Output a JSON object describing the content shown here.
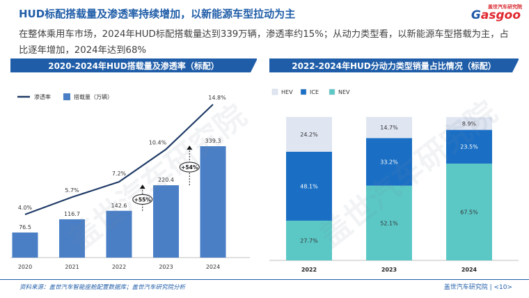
{
  "header": {
    "title": "HUD标配搭载量及渗透率持续增加，以新能源车型拉动为主",
    "subtitle": "在整体乘用车市场，2024年HUD标配搭载量达到339万辆，渗透率约15%；从动力类型看，以新能源车型搭载为主，占比逐年增加，2024年达到68%"
  },
  "logo": {
    "top_text": "盖世汽车研究院",
    "word": "asgoo",
    "word_g": "G"
  },
  "watermark_text": "盖世汽车研究院",
  "footer": {
    "source": "资料来源：盖世汽车智能座舱配置数据库；盖世汽车研究院分析",
    "page": "盖世汽车研究院 | <10>"
  },
  "colors": {
    "brand_blue": "#1f5da8",
    "bar_blue": "#4a7fc6",
    "line_navy": "#1f3a66",
    "hev": "#dfe5f1",
    "ice": "#1a6fc4",
    "nev": "#5bc8c6"
  },
  "chart_data": [
    {
      "type": "bar",
      "title": "2020-2024年HUD搭载量及渗透率（标配）",
      "categories": [
        "2020",
        "2021",
        "2022",
        "2023",
        "2024"
      ],
      "series": [
        {
          "name": "搭载量（万辆）",
          "kind": "bar",
          "values": [
            76.5,
            116.7,
            142.6,
            220.4,
            339.3
          ],
          "labels": [
            "76.5",
            "116.7",
            "142.6",
            "220.4",
            "339.3"
          ]
        },
        {
          "name": "渗透率",
          "kind": "line",
          "values": [
            4.0,
            5.7,
            7.2,
            10.4,
            14.8
          ],
          "labels": [
            "4.0%",
            "5.7%",
            "7.2%",
            "10.4%",
            "14.8%"
          ]
        }
      ],
      "annotations": [
        {
          "text": "+55%",
          "from": "2022",
          "to": "2023"
        },
        {
          "text": "+54%",
          "from": "2023",
          "to": "2024"
        }
      ],
      "legend": "top-left",
      "grid": false
    },
    {
      "type": "bar",
      "stacked": true,
      "title": "2022-2024年HUD分动力类型销量占比情况（标配）",
      "categories": [
        "2022",
        "2023",
        "2024"
      ],
      "series": [
        {
          "name": "NEV",
          "values": [
            27.7,
            52.1,
            67.5
          ],
          "labels": [
            "27.7%",
            "52.1%",
            "67.5%"
          ]
        },
        {
          "name": "ICE",
          "values": [
            48.1,
            33.2,
            23.5
          ],
          "labels": [
            "48.1%",
            "33.2%",
            "23.5%"
          ]
        },
        {
          "name": "HEV",
          "values": [
            24.2,
            14.7,
            8.9
          ],
          "labels": [
            "24.2%",
            "14.7%",
            "8.9%"
          ]
        }
      ],
      "legend_order": [
        "HEV",
        "ICE",
        "NEV"
      ],
      "legend": "top-left",
      "ylim": [
        0,
        100
      ],
      "grid": false
    }
  ]
}
